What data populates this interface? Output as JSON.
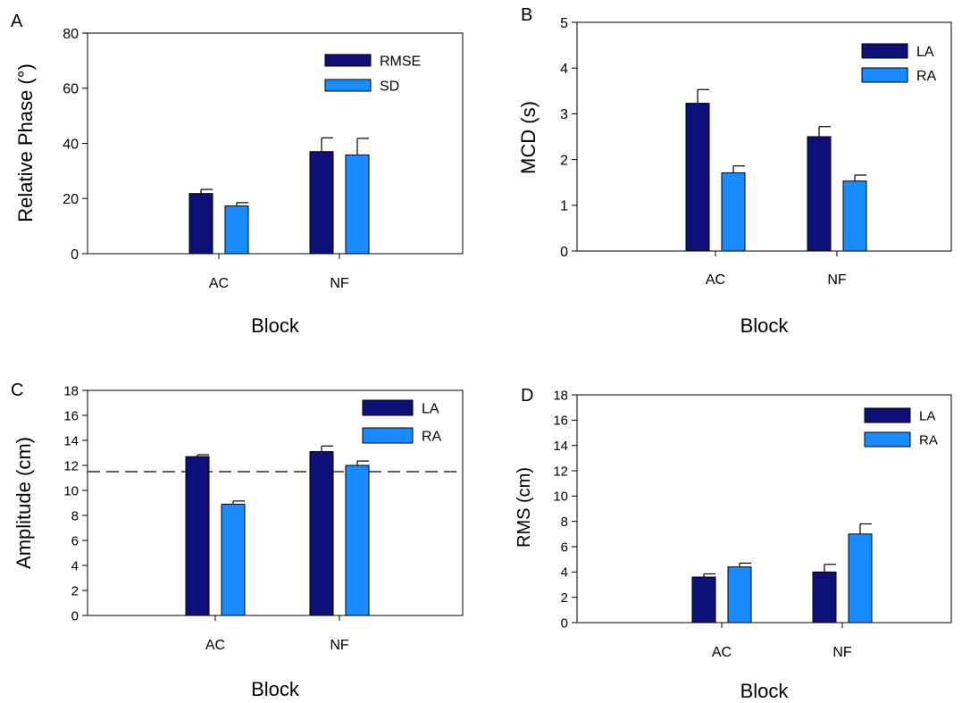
{
  "colors": {
    "dark": "#0d1077",
    "light": "#1a8cff",
    "axis": "#000000",
    "refline": "#000000"
  },
  "chart_data": [
    {
      "panel_label": "A",
      "type": "bar",
      "categories": [
        "AC",
        "NF"
      ],
      "series": [
        {
          "name": "RMSE",
          "values": [
            21.8,
            37.0
          ],
          "errors": [
            1.5,
            5.0
          ]
        },
        {
          "name": "SD",
          "values": [
            17.3,
            35.8
          ],
          "errors": [
            1.2,
            6.0
          ]
        }
      ],
      "xlabel": "Block",
      "ylabel": "Relative Phase (°)",
      "ylim": [
        0,
        80
      ],
      "yticks": [
        0,
        20,
        40,
        60,
        80
      ],
      "legend": "top-right"
    },
    {
      "panel_label": "B",
      "type": "bar",
      "categories": [
        "AC",
        "NF"
      ],
      "series": [
        {
          "name": "LA",
          "values": [
            3.23,
            2.5
          ],
          "errors": [
            0.3,
            0.22
          ]
        },
        {
          "name": "RA",
          "values": [
            1.71,
            1.53
          ],
          "errors": [
            0.15,
            0.13
          ]
        }
      ],
      "xlabel": "Block",
      "ylabel": "MCD (s)",
      "ylim": [
        0,
        5
      ],
      "yticks": [
        0,
        1,
        2,
        3,
        4,
        5
      ],
      "legend": "top-right"
    },
    {
      "panel_label": "C",
      "type": "bar",
      "categories": [
        "AC",
        "NF"
      ],
      "series": [
        {
          "name": "LA",
          "values": [
            12.7,
            13.1
          ],
          "errors": [
            0.15,
            0.45
          ]
        },
        {
          "name": "RA",
          "values": [
            8.9,
            12.0
          ],
          "errors": [
            0.25,
            0.35
          ]
        }
      ],
      "reference_line": 11.5,
      "xlabel": "Block",
      "ylabel": "Amplitude (cm)",
      "ylim": [
        0,
        18
      ],
      "yticks": [
        0,
        2,
        4,
        6,
        8,
        10,
        12,
        14,
        16,
        18
      ],
      "legend": "top-right"
    },
    {
      "panel_label": "D",
      "type": "bar",
      "categories": [
        "AC",
        "NF"
      ],
      "series": [
        {
          "name": "LA",
          "values": [
            3.6,
            4.0
          ],
          "errors": [
            0.25,
            0.6
          ]
        },
        {
          "name": "RA",
          "values": [
            4.4,
            7.0
          ],
          "errors": [
            0.3,
            0.8
          ]
        }
      ],
      "xlabel": "Block",
      "ylabel": "RMS (cm)",
      "ylim": [
        0,
        18
      ],
      "yticks": [
        0,
        2,
        4,
        6,
        8,
        10,
        12,
        14,
        16,
        18
      ],
      "legend": "top-right"
    }
  ]
}
